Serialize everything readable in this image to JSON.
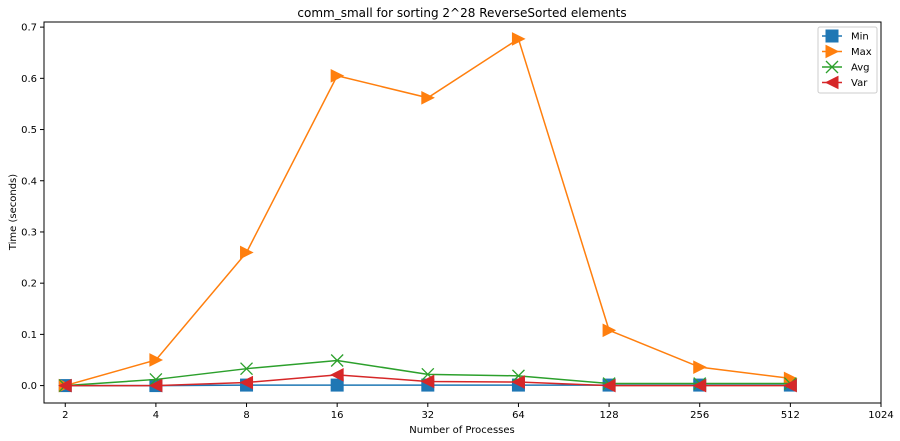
{
  "chart_data": {
    "type": "line",
    "title": "comm_small for sorting 2^28 ReverseSorted elements",
    "xlabel": "Number of Processes",
    "ylabel": "Time (seconds)",
    "x_scale": "log2",
    "x_ticks": [
      "2",
      "4",
      "8",
      "16",
      "32",
      "64",
      "128",
      "256",
      "512",
      "1024"
    ],
    "x": [
      2,
      4,
      8,
      16,
      32,
      64,
      128,
      256,
      512
    ],
    "xlim": [
      1.7,
      1024
    ],
    "ylim": [
      -0.034,
      0.71
    ],
    "y_ticks": [
      "0.0",
      "0.1",
      "0.2",
      "0.3",
      "0.4",
      "0.5",
      "0.6",
      "0.7"
    ],
    "grid": false,
    "legend_position": "top-right",
    "series": [
      {
        "name": "Min",
        "color": "#1f77b4",
        "marker": "square",
        "values": [
          0.0,
          0.0,
          0.001,
          0.001,
          0.001,
          0.001,
          0.001,
          0.001,
          0.001
        ]
      },
      {
        "name": "Max",
        "color": "#ff7f0e",
        "marker": "triangle-right",
        "values": [
          0.0,
          0.05,
          0.26,
          0.605,
          0.562,
          0.677,
          0.108,
          0.036,
          0.014
        ]
      },
      {
        "name": "Avg",
        "color": "#2ca02c",
        "marker": "x",
        "values": [
          0.0,
          0.012,
          0.033,
          0.049,
          0.022,
          0.019,
          0.004,
          0.004,
          0.004
        ]
      },
      {
        "name": "Var",
        "color": "#d62728",
        "marker": "triangle-left",
        "values": [
          0.0,
          0.0,
          0.006,
          0.021,
          0.008,
          0.007,
          0.0,
          0.0,
          0.0
        ]
      }
    ]
  }
}
